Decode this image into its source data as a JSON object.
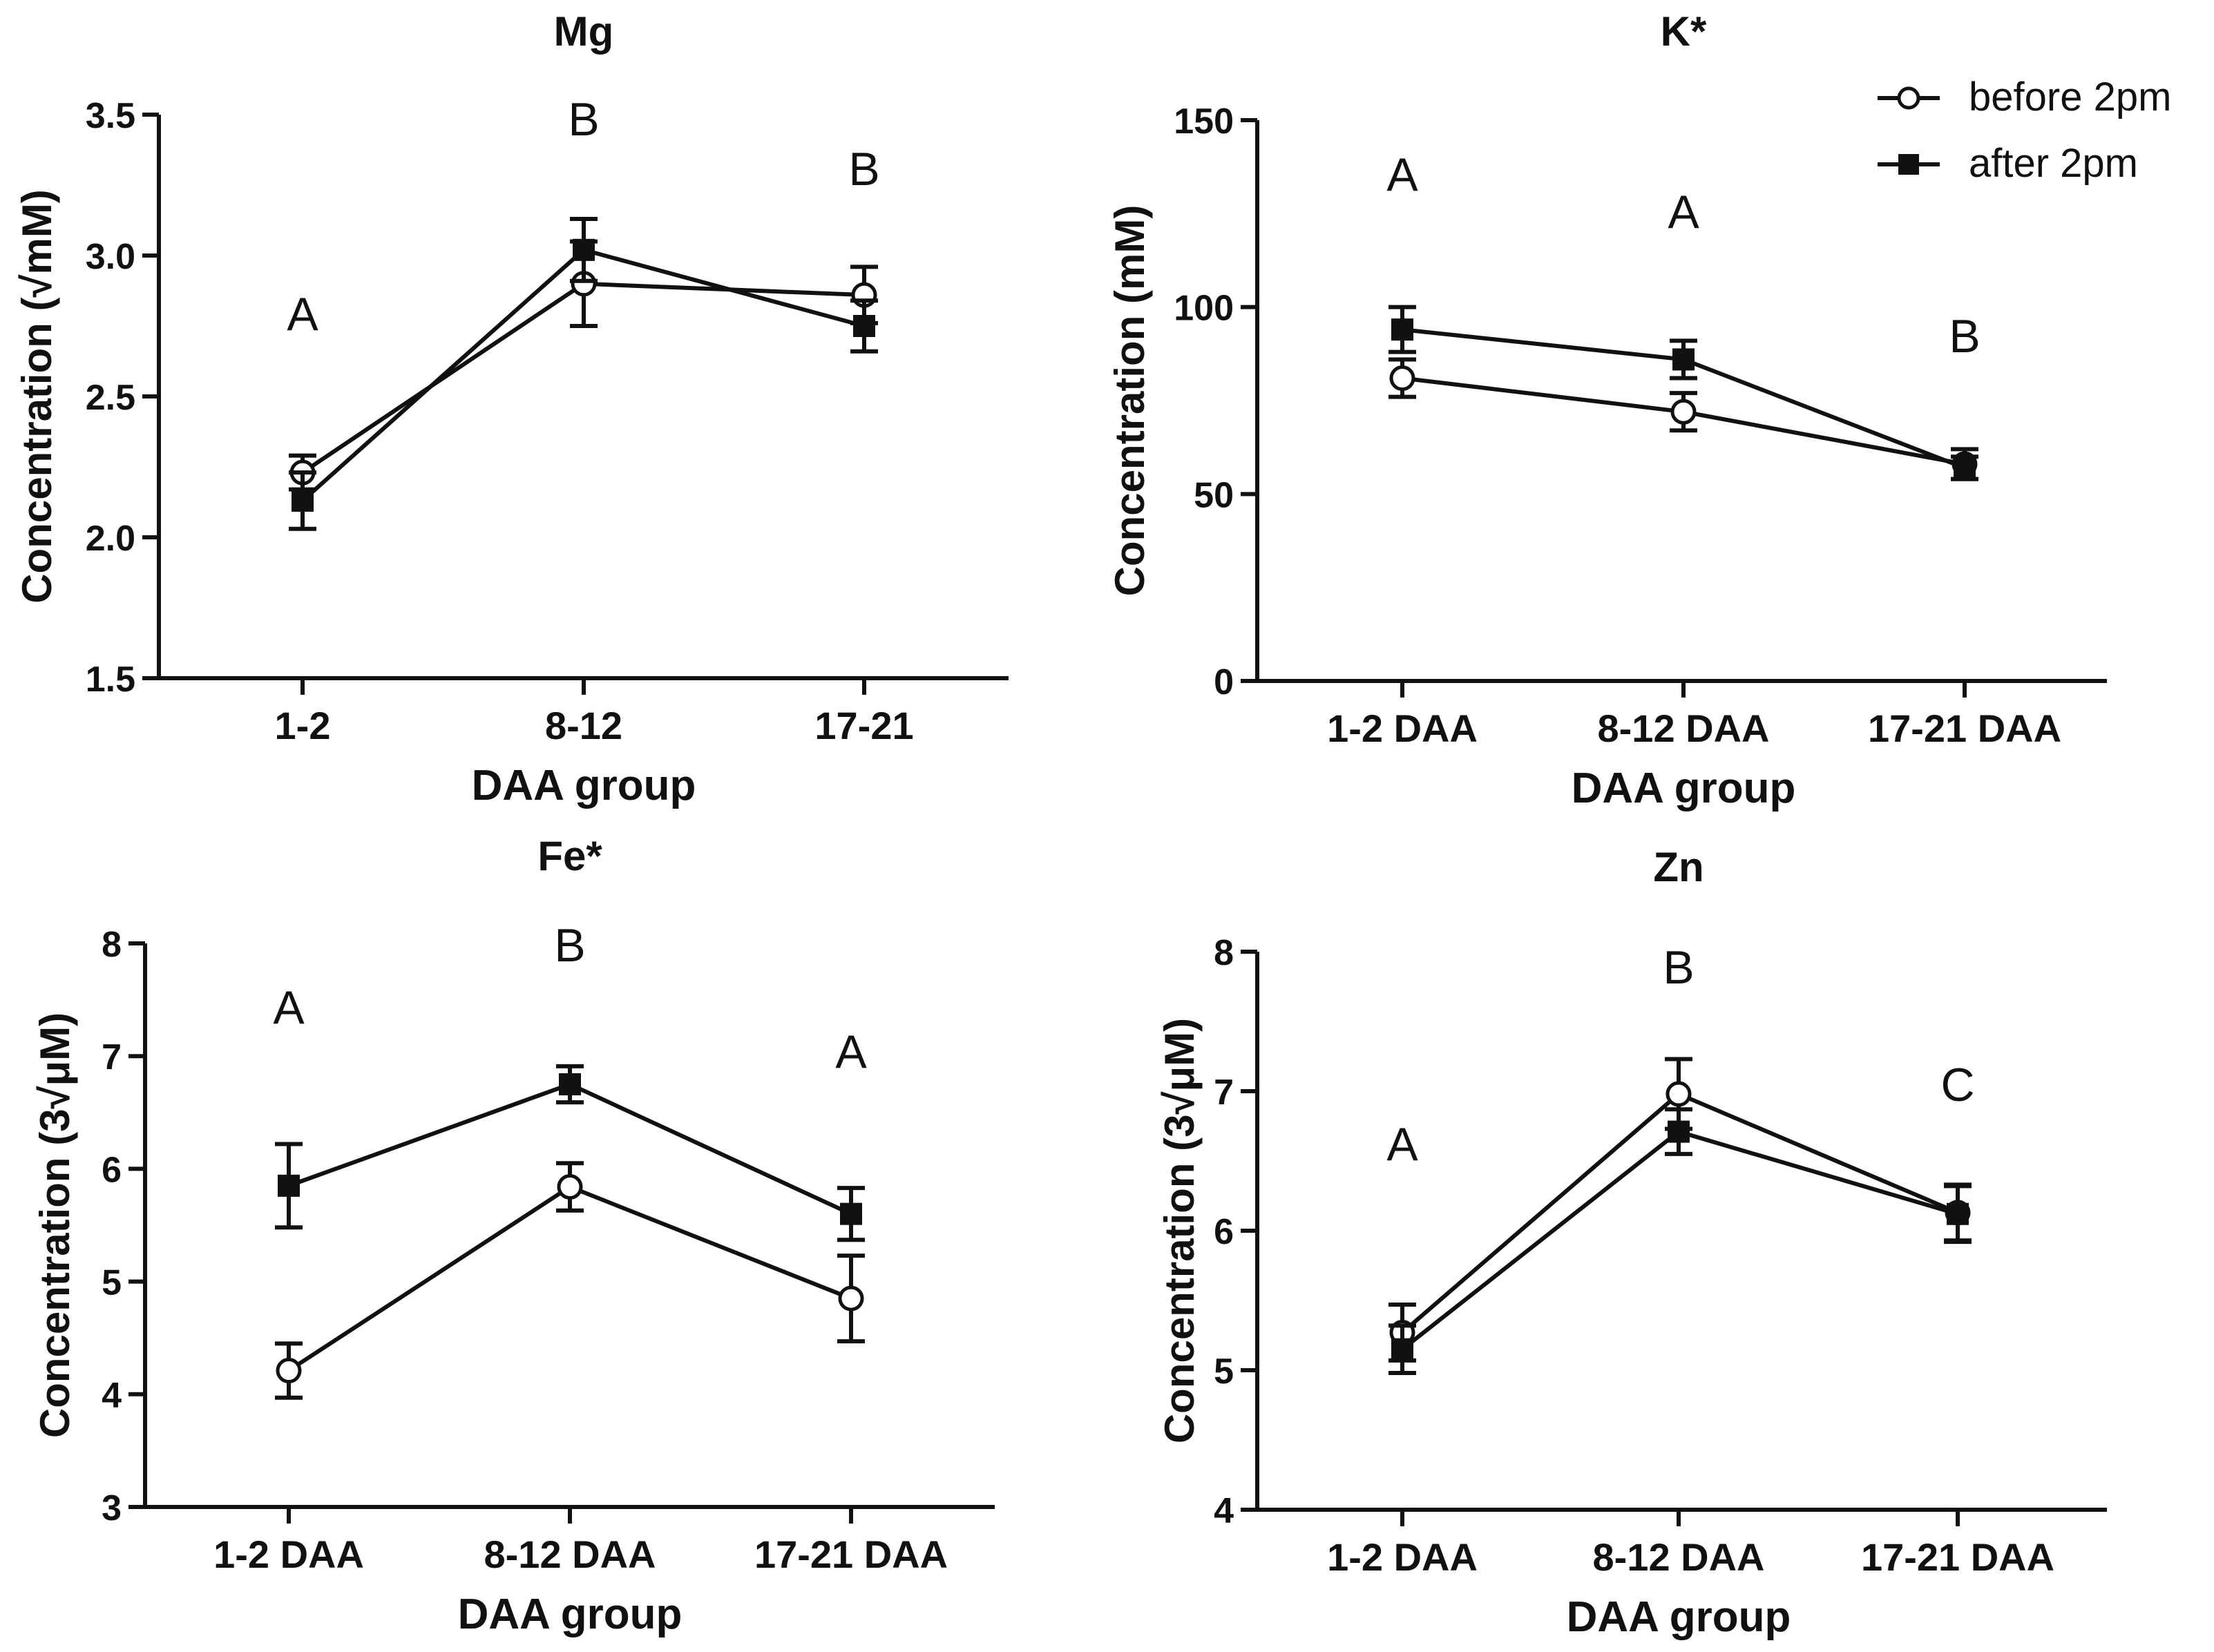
{
  "legend": {
    "series": [
      {
        "name": "before 2pm",
        "marker": "open-circle"
      },
      {
        "name": "after 2pm",
        "marker": "filled-square"
      }
    ],
    "placement": "top-right"
  },
  "colors": {
    "ink": "#111111",
    "background": "#ffffff"
  },
  "chart_data": [
    {
      "id": "mg",
      "type": "line",
      "title": "Mg",
      "xlabel": "DAA group",
      "ylabel": "Concentration (√mM)",
      "categories": [
        "1-2",
        "8-12",
        "17-21"
      ],
      "ylim": [
        1.5,
        3.5
      ],
      "yticks": [
        1.5,
        2.0,
        2.5,
        3.0,
        3.5
      ],
      "ytick_labels": [
        "1.5",
        "2.0",
        "2.5",
        "3.0",
        "3.5"
      ],
      "group_letters": [
        "A",
        "B",
        "B"
      ],
      "series": [
        {
          "name": "before 2pm",
          "values": [
            2.23,
            2.9,
            2.86
          ],
          "errors": [
            0.06,
            0.15,
            0.1
          ]
        },
        {
          "name": "after 2pm",
          "values": [
            2.13,
            3.02,
            2.75
          ],
          "errors": [
            0.1,
            0.11,
            0.09
          ]
        }
      ]
    },
    {
      "id": "k",
      "type": "line",
      "title": "K*",
      "xlabel": "DAA group",
      "ylabel": "Concentration (mM)",
      "categories": [
        "1-2 DAA",
        "8-12 DAA",
        "17-21 DAA"
      ],
      "ylim": [
        0,
        150
      ],
      "yticks": [
        0,
        50,
        100,
        150
      ],
      "ytick_labels": [
        "0",
        "50",
        "100",
        "150"
      ],
      "group_letters": [
        "A",
        "A",
        "B"
      ],
      "series": [
        {
          "name": "before 2pm",
          "values": [
            81,
            72,
            58
          ],
          "errors": [
            5,
            5,
            4
          ]
        },
        {
          "name": "after 2pm",
          "values": [
            94,
            86,
            57
          ],
          "errors": [
            6,
            5,
            3
          ]
        }
      ]
    },
    {
      "id": "fe",
      "type": "line",
      "title": "Fe*",
      "xlabel": "DAA group",
      "ylabel": "Concentration (3√μM)",
      "categories": [
        "1-2 DAA",
        "8-12 DAA",
        "17-21 DAA"
      ],
      "ylim": [
        3,
        8
      ],
      "yticks": [
        3,
        4,
        5,
        6,
        7,
        8
      ],
      "ytick_labels": [
        "3",
        "4",
        "5",
        "6",
        "7",
        "8"
      ],
      "group_letters": [
        "A",
        "B",
        "A"
      ],
      "series": [
        {
          "name": "before 2pm",
          "values": [
            4.21,
            5.84,
            4.85
          ],
          "errors": [
            0.24,
            0.21,
            0.38
          ]
        },
        {
          "name": "after 2pm",
          "values": [
            5.85,
            6.75,
            5.6
          ],
          "errors": [
            0.37,
            0.16,
            0.23
          ]
        }
      ]
    },
    {
      "id": "zn",
      "type": "line",
      "title": "Zn",
      "xlabel": "DAA group",
      "ylabel": "Concentration (3√μM)",
      "categories": [
        "1-2 DAA",
        "8-12 DAA",
        "17-21 DAA"
      ],
      "ylim": [
        4,
        8
      ],
      "yticks": [
        4,
        5,
        6,
        7,
        8
      ],
      "ytick_labels": [
        "4",
        "5",
        "6",
        "7",
        "8"
      ],
      "group_letters": [
        "A",
        "B",
        "C"
      ],
      "series": [
        {
          "name": "before 2pm",
          "values": [
            5.27,
            6.98,
            6.13
          ],
          "errors": [
            0.2,
            0.25,
            0.2
          ]
        },
        {
          "name": "after 2pm",
          "values": [
            5.15,
            6.71,
            6.12
          ],
          "errors": [
            0.17,
            0.16,
            0.2
          ]
        }
      ]
    }
  ]
}
